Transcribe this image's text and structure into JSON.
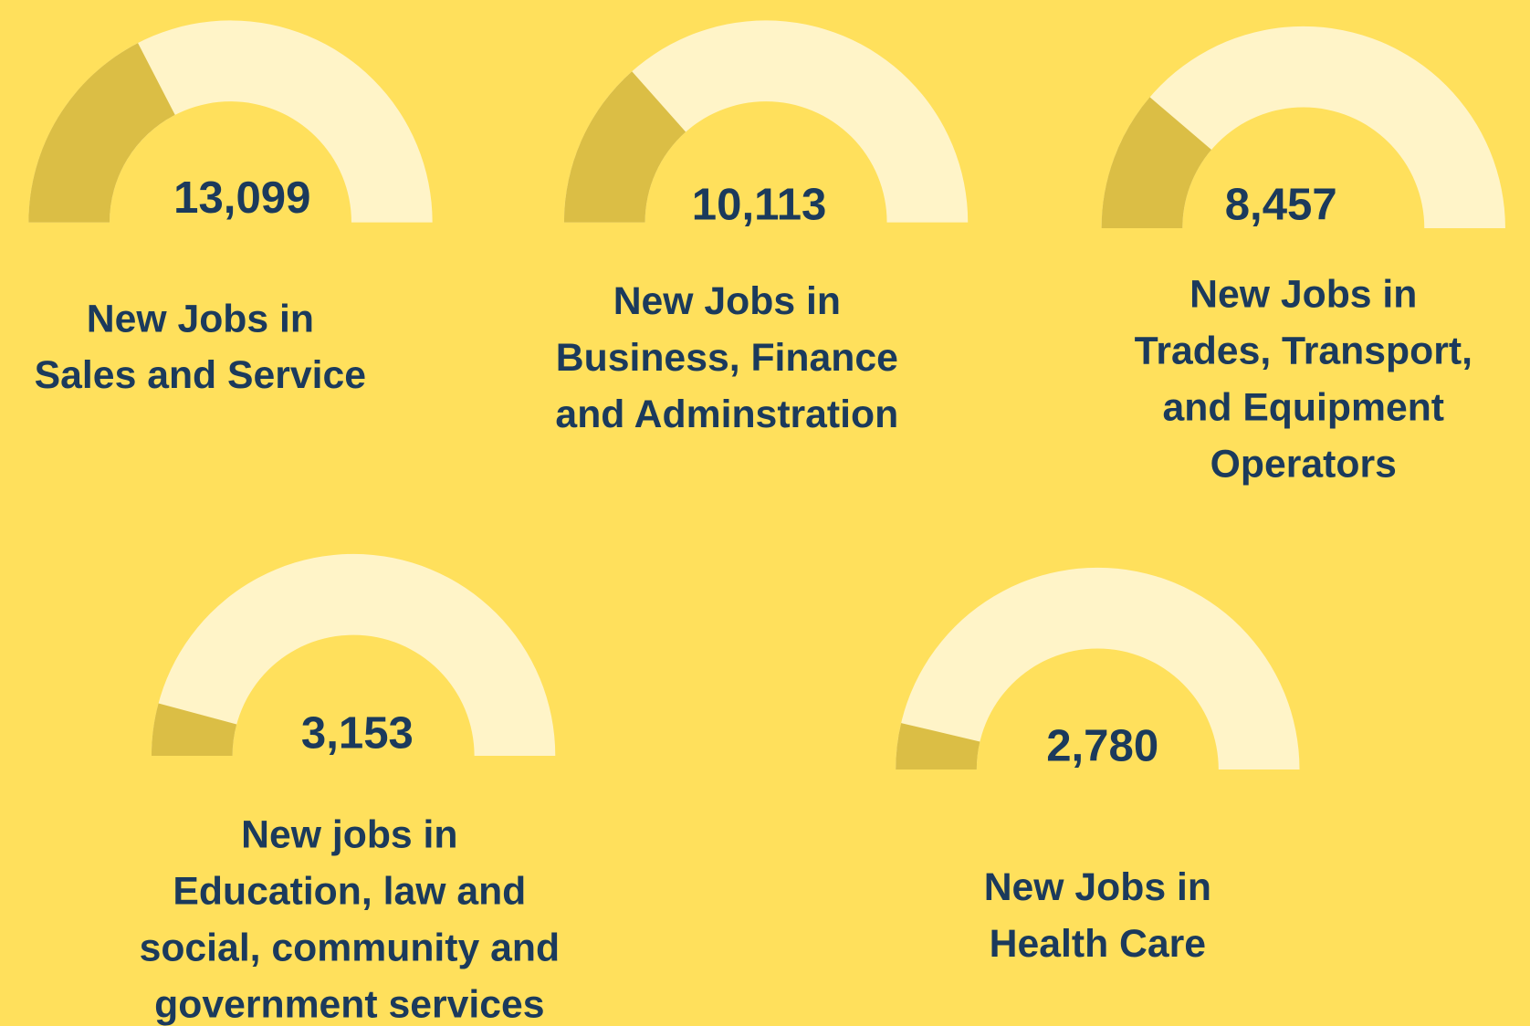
{
  "chart_data": {
    "type": "gauge",
    "ylim": [
      0,
      37602
    ],
    "fill_color": "#DBBE45",
    "track_color": "#FFF4C8",
    "categories": [
      [
        "New Jobs in",
        "Sales and Service"
      ],
      [
        "New Jobs in",
        "Business, Finance",
        "and Adminstration"
      ],
      [
        "New Jobs in",
        "Trades, Transport,",
        "and Equipment",
        "Operators"
      ],
      [
        "New jobs in",
        "Education, law and",
        "social, community and",
        "government services"
      ],
      [
        "New Jobs in",
        "Health Care"
      ]
    ],
    "values": [
      13099,
      10113,
      8457,
      3153,
      2780
    ],
    "value_labels": [
      "13,099",
      "10,113",
      "8,457",
      "3,153",
      "2,780"
    ]
  }
}
